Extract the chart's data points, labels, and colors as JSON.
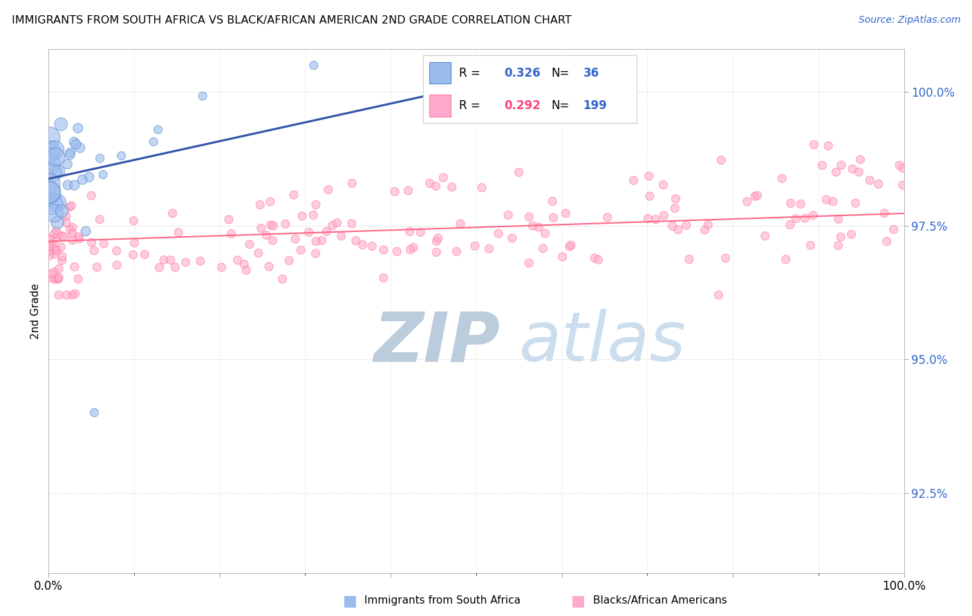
{
  "title": "IMMIGRANTS FROM SOUTH AFRICA VS BLACK/AFRICAN AMERICAN 2ND GRADE CORRELATION CHART",
  "source": "Source: ZipAtlas.com",
  "ylabel": "2nd Grade",
  "ytick_labels": [
    "92.5%",
    "95.0%",
    "97.5%",
    "100.0%"
  ],
  "ytick_values": [
    0.925,
    0.95,
    0.975,
    1.0
  ],
  "legend_label1": "Immigrants from South Africa",
  "legend_label2": "Blacks/African Americans",
  "R1": 0.326,
  "N1": 36,
  "R2": 0.292,
  "N2": 199,
  "color_blue_fill": "#99BBEE",
  "color_blue_edge": "#5588CC",
  "color_blue_line": "#3355AA",
  "color_pink_fill": "#FFAACC",
  "color_pink_edge": "#FF7799",
  "color_pink_line": "#FF6688",
  "color_blue_text": "#3366CC",
  "color_pink_text": "#FF4477",
  "watermark_zip_color": "#BBCCDD",
  "watermark_atlas_color": "#CCDDEE",
  "background_color": "#FFFFFF",
  "xmin": 0.0,
  "xmax": 1.0,
  "ymin": 0.91,
  "ymax": 1.008,
  "grid_color": "#DDDDDD",
  "spine_color": "#AAAAAA"
}
